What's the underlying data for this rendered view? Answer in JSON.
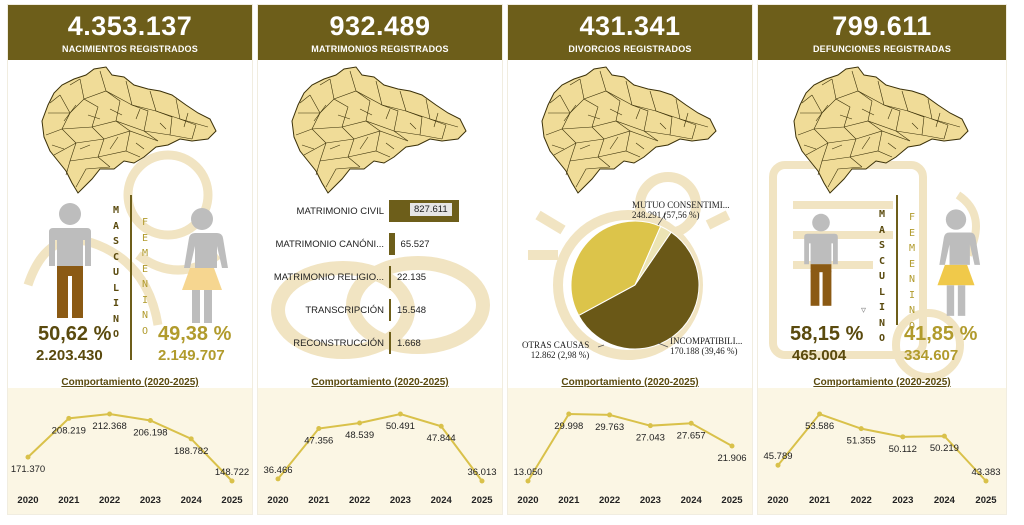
{
  "cards": [
    {
      "total": "4.353.137",
      "title": "NACIMIENTOS REGISTRADOS"
    },
    {
      "total": "932.489",
      "title": "MATRIMONIOS REGISTRADOS"
    },
    {
      "total": "431.341",
      "title": "DIVORCIOS REGISTRADOS"
    },
    {
      "total": "799.611",
      "title": "DEFUNCIONES REGISTRADAS"
    }
  ],
  "births": {
    "male_word": "MASCULINO",
    "female_word": "FEMENINO",
    "male_pct": "50,62 %",
    "male_count": "2.203.430",
    "female_pct": "49,38 %",
    "female_count": "2.149.707"
  },
  "deaths": {
    "male_word": "MASCULINO",
    "female_word": "FEMENINO",
    "male_pct": "58,15 %",
    "male_count": "465.004",
    "female_pct": "41,85 %",
    "female_count": "334.607"
  },
  "marriages_bars": {
    "labels": [
      "MATRIMONIO CIVIL",
      "MATRIMONIO CANÓNI...",
      "MATRIMONIO RELIGIO...",
      "TRANSCRIPCIÓN",
      "RECONSTRUCCIÓN"
    ],
    "values": [
      827611,
      65527,
      22135,
      15548,
      1668
    ],
    "value_labels": [
      "827.611",
      "65.527",
      "22.135",
      "15.548",
      "1.668"
    ]
  },
  "divorces_pie": {
    "labels": [
      "MUTUO CONSENTIMI...",
      "INCOMPATIBILI...",
      "OTRAS CAUSAS"
    ],
    "details": [
      "248.291 (57,56 %)",
      "170.188 (39,46 %)",
      "12.862 (2,98 %)"
    ],
    "values": [
      248291,
      170188,
      12862
    ],
    "colors": [
      "#6a5817",
      "#dcc44a",
      "#ece4b4"
    ]
  },
  "trend_title": "Comportamiento (2020-2025)",
  "years": [
    "2020",
    "2021",
    "2022",
    "2023",
    "2024",
    "2025"
  ],
  "chart_data": [
    {
      "type": "line",
      "title": "Comportamiento (2020-2025)",
      "categories": [
        "2020",
        "2021",
        "2022",
        "2023",
        "2024",
        "2025"
      ],
      "values": [
        171370,
        208219,
        212368,
        206198,
        188782,
        148722
      ],
      "labels": [
        "171.370",
        "208.219",
        "212.368",
        "206.198",
        "188.782",
        "148.722"
      ]
    },
    {
      "type": "line",
      "title": "Comportamiento (2020-2025)",
      "categories": [
        "2020",
        "2021",
        "2022",
        "2023",
        "2024",
        "2025"
      ],
      "values": [
        36466,
        47356,
        48539,
        50491,
        47844,
        36013
      ],
      "labels": [
        "36.466",
        "47.356",
        "48.539",
        "50.491",
        "47.844",
        "36.013"
      ]
    },
    {
      "type": "line",
      "title": "Comportamiento (2020-2025)",
      "categories": [
        "2020",
        "2021",
        "2022",
        "2023",
        "2024",
        "2025"
      ],
      "values": [
        13050,
        29998,
        29763,
        27043,
        27657,
        21906
      ],
      "labels": [
        "13.050",
        "29.998",
        "29.763",
        "27.043",
        "27.657",
        "21.906"
      ]
    },
    {
      "type": "line",
      "title": "Comportamiento (2020-2025)",
      "categories": [
        "2020",
        "2021",
        "2022",
        "2023",
        "2024",
        "2025"
      ],
      "values": [
        45789,
        53586,
        51355,
        50112,
        50219,
        43383
      ],
      "labels": [
        "45.789",
        "53.586",
        "51.355",
        "50.112",
        "50.219",
        "43.383"
      ]
    },
    {
      "type": "bar",
      "title": "",
      "categories": [
        "MATRIMONIO CIVIL",
        "MATRIMONIO CANÓNI...",
        "MATRIMONIO RELIGIO...",
        "TRANSCRIPCIÓN",
        "RECONSTRUCCIÓN"
      ],
      "values": [
        827611,
        65527,
        22135,
        15548,
        1668
      ]
    },
    {
      "type": "pie",
      "title": "",
      "categories": [
        "MUTUO CONSENTIMI...",
        "INCOMPATIBILI...",
        "OTRAS CAUSAS"
      ],
      "values": [
        248291,
        170188,
        12862
      ]
    }
  ],
  "colors": {
    "header": "#6d5e1a",
    "dark": "#5a4a0e",
    "gold": "#d9c14a",
    "map": "#f0dc98",
    "trend_bg": "#fbf6e4"
  }
}
